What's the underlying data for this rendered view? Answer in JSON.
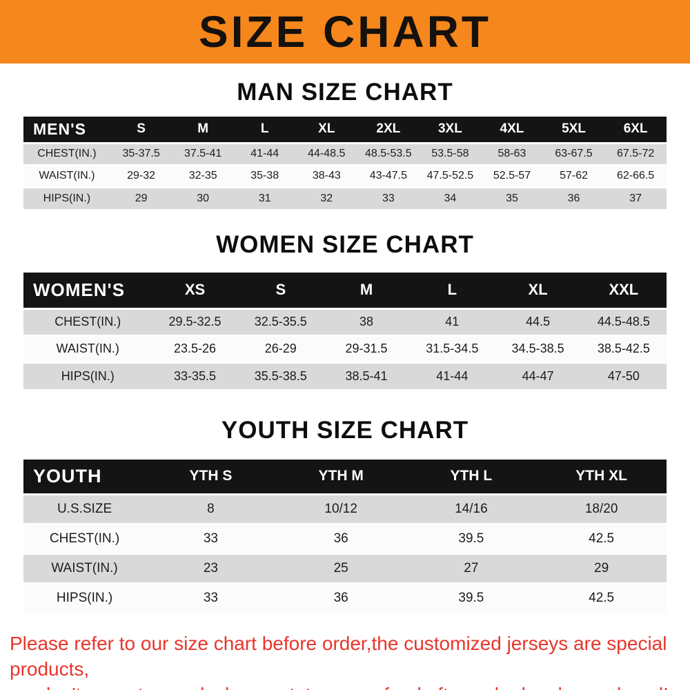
{
  "banner": {
    "title": "SIZE CHART"
  },
  "colors": {
    "banner_bg": "#f6871d",
    "table_header_bg": "#141414",
    "row_gray": "#d9d9d9",
    "footer_red": "#e8352b"
  },
  "chart_data": [
    {
      "type": "table",
      "title": "MAN SIZE CHART",
      "columns": [
        "MEN'S",
        "S",
        "M",
        "L",
        "XL",
        "2XL",
        "3XL",
        "4XL",
        "5XL",
        "6XL"
      ],
      "rows": [
        [
          "CHEST(IN.)",
          "35-37.5",
          "37.5-41",
          "41-44",
          "44-48.5",
          "48.5-53.5",
          "53.5-58",
          "58-63",
          "63-67.5",
          "67.5-72"
        ],
        [
          "WAIST(IN.)",
          "29-32",
          "32-35",
          "35-38",
          "38-43",
          "43-47.5",
          "47.5-52.5",
          "52.5-57",
          "57-62",
          "62-66.5"
        ],
        [
          "HIPS(IN.)",
          "29",
          "30",
          "31",
          "32",
          "33",
          "34",
          "35",
          "36",
          "37"
        ]
      ]
    },
    {
      "type": "table",
      "title": "WOMEN SIZE CHART",
      "columns": [
        "WOMEN'S",
        "XS",
        "S",
        "M",
        "L",
        "XL",
        "XXL"
      ],
      "rows": [
        [
          "CHEST(IN.)",
          "29.5-32.5",
          "32.5-35.5",
          "38",
          "41",
          "44.5",
          "44.5-48.5"
        ],
        [
          "WAIST(IN.)",
          "23.5-26",
          "26-29",
          "29-31.5",
          "31.5-34.5",
          "34.5-38.5",
          "38.5-42.5"
        ],
        [
          "HIPS(IN.)",
          "33-35.5",
          "35.5-38.5",
          "38.5-41",
          "41-44",
          "44-47",
          "47-50"
        ]
      ]
    },
    {
      "type": "table",
      "title": "YOUTH SIZE CHART",
      "columns": [
        "YOUTH",
        "YTH S",
        "YTH M",
        "YTH L",
        "YTH XL"
      ],
      "rows": [
        [
          "U.S.SIZE",
          "8",
          "10/12",
          "14/16",
          "18/20"
        ],
        [
          "CHEST(IN.)",
          "33",
          "36",
          "39.5",
          "42.5"
        ],
        [
          "WAIST(IN.)",
          "23",
          "25",
          "27",
          "29"
        ],
        [
          "HIPS(IN.)",
          "33",
          "36",
          "39.5",
          "42.5"
        ]
      ]
    }
  ],
  "footer": {
    "line1": "Please refer to our size chart before order,the customized jerseys are special products,",
    "line2": "we don't accept cancel, change, teturn or refund after order has been placed!"
  }
}
